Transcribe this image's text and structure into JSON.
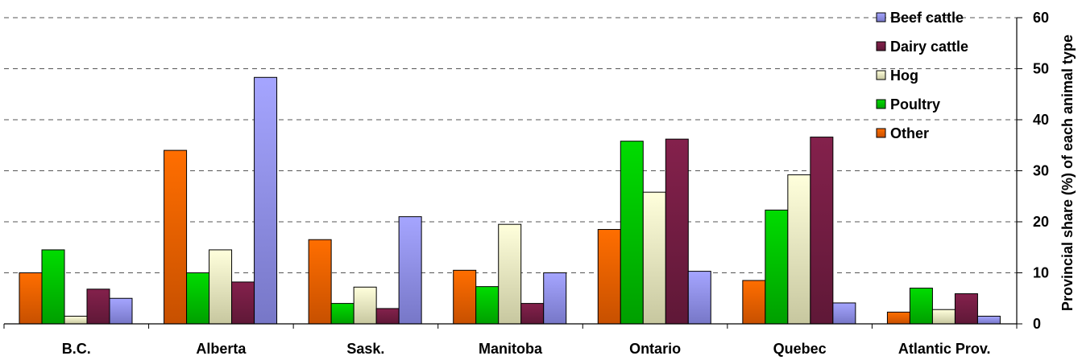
{
  "chart_data": {
    "type": "bar",
    "categories": [
      "B.C.",
      "Alberta",
      "Sask.",
      "Manitoba",
      "Ontario",
      "Quebec",
      "Atlantic Prov."
    ],
    "series": [
      {
        "name": "Other",
        "values": [
          10,
          34,
          16.5,
          10.5,
          18.5,
          8.5,
          2.3
        ]
      },
      {
        "name": "Poultry",
        "values": [
          14.5,
          10,
          4,
          7.3,
          35.8,
          22.3,
          7
        ]
      },
      {
        "name": "Hog",
        "values": [
          1.5,
          14.5,
          7.2,
          19.5,
          25.8,
          29.2,
          2.8
        ]
      },
      {
        "name": "Dairy cattle",
        "values": [
          6.8,
          8.2,
          3,
          4,
          36.2,
          36.6,
          5.9
        ]
      },
      {
        "name": "Beef cattle",
        "values": [
          5,
          48.3,
          21,
          10,
          10.3,
          4.1,
          1.5
        ]
      }
    ],
    "legend_order": [
      "Beef cattle",
      "Dairy cattle",
      "Hog",
      "Poultry",
      "Other"
    ],
    "colors": {
      "Other": "#ff6600",
      "Poultry": "#00cc00",
      "Hog": "#ffffcc",
      "Dairy cattle": "#7a1f46",
      "Beef cattle": "#9999ff"
    },
    "ylabel": "Provincial share (%) of each animal type",
    "ylim": [
      0,
      60
    ],
    "yticks": [
      "0",
      "10",
      "20",
      "30",
      "40",
      "50",
      "60"
    ],
    "grid": true,
    "legend_position": "top-right",
    "yaxis_side": "right"
  }
}
